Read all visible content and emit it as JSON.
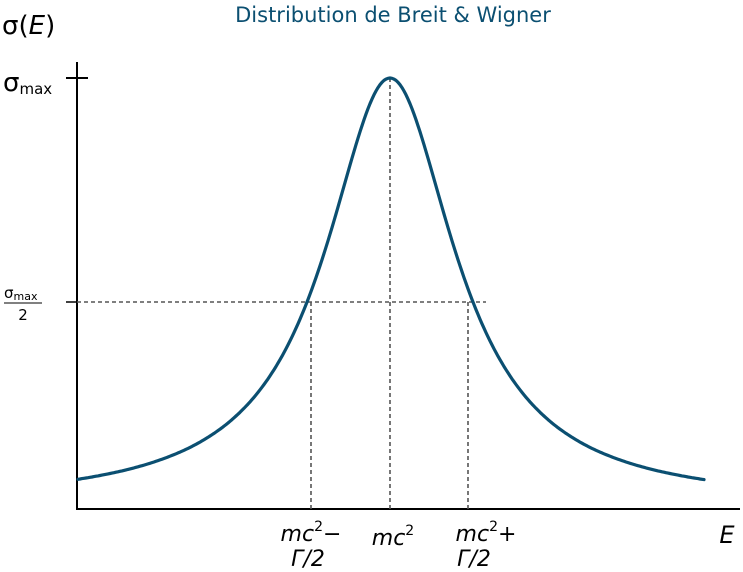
{
  "diagram": {
    "title": "Distribution de Breit & Wigner",
    "y_axis_label": {
      "main": "σ(",
      "var": "E",
      "close": ")"
    },
    "x_axis_label": "E",
    "y_ticks": {
      "max": {
        "symbol": "σ",
        "sub": "max"
      },
      "half": {
        "numerator_symbol": "σ",
        "numerator_sub": "max",
        "denominator": "2"
      }
    },
    "x_ticks": {
      "left": {
        "line1_var": "mc",
        "line1_exp": "2",
        "line1_op": "−",
        "line2": "Γ/2"
      },
      "center": {
        "var": "mc",
        "exp": "2"
      },
      "right": {
        "line1_var": "mc",
        "line1_exp": "2",
        "line1_op": "+",
        "line2": "Γ/2"
      }
    },
    "colors": {
      "curve": "#0b4f71",
      "title": "#0b4f71",
      "axes": "#000000",
      "guides": "#555555"
    },
    "curve": {
      "type": "lorentzian",
      "center": 0,
      "half_width": 1,
      "peak": 1,
      "x_range": [
        -4,
        4
      ]
    }
  }
}
